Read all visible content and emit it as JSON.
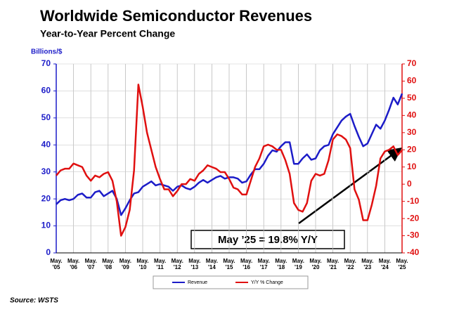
{
  "chart_data": {
    "type": "line",
    "title": "Worldwide Semiconductor Revenues",
    "subtitle": "Year-to-Year Percent Change",
    "ylabel": "Billions/$",
    "annotation": "May ’25 = 19.8% Y/Y",
    "source": "Source: WSTS",
    "grid": true,
    "legend": "bottom",
    "xlim": [
      "2005-05",
      "2025-05"
    ],
    "xticks": [
      {
        "value": "2005-05",
        "label": "May. '05"
      },
      {
        "value": "2006-05",
        "label": "May. '06"
      },
      {
        "value": "2007-05",
        "label": "May. '07"
      },
      {
        "value": "2008-05",
        "label": "May. '08"
      },
      {
        "value": "2009-05",
        "label": "May. '09"
      },
      {
        "value": "2010-05",
        "label": "May. '10"
      },
      {
        "value": "2011-05",
        "label": "May. '11"
      },
      {
        "value": "2012-05",
        "label": "May. '12"
      },
      {
        "value": "2013-05",
        "label": "May. '13"
      },
      {
        "value": "2014-05",
        "label": "May. '14"
      },
      {
        "value": "2015-05",
        "label": "May. '15"
      },
      {
        "value": "2016-05",
        "label": "May. '16"
      },
      {
        "value": "2017-05",
        "label": "May. '17"
      },
      {
        "value": "2018-05",
        "label": "May. '18"
      },
      {
        "value": "2019-05",
        "label": "May. '19"
      },
      {
        "value": "2020-05",
        "label": "May. '20"
      },
      {
        "value": "2021-05",
        "label": "May. '21"
      },
      {
        "value": "2022-05",
        "label": "May. '22"
      },
      {
        "value": "2023-05",
        "label": "May. '23"
      },
      {
        "value": "2024-05",
        "label": "May. '24"
      },
      {
        "value": "2025-05",
        "label": "May. '25"
      }
    ],
    "ylim": [
      0,
      70
    ],
    "yticks": [
      0,
      10,
      20,
      30,
      40,
      50,
      60,
      70
    ],
    "y2lim": [
      -40,
      70
    ],
    "y2ticks": [
      -40,
      -30,
      -20,
      -10,
      0,
      10,
      20,
      30,
      40,
      50,
      60,
      70
    ],
    "x": [
      "2005-05",
      "2005-08",
      "2005-11",
      "2006-02",
      "2006-05",
      "2006-08",
      "2006-11",
      "2007-02",
      "2007-05",
      "2007-08",
      "2007-11",
      "2008-02",
      "2008-05",
      "2008-08",
      "2008-11",
      "2009-02",
      "2009-05",
      "2009-08",
      "2009-11",
      "2010-02",
      "2010-05",
      "2010-08",
      "2010-11",
      "2011-02",
      "2011-05",
      "2011-08",
      "2011-11",
      "2012-02",
      "2012-05",
      "2012-08",
      "2012-11",
      "2013-02",
      "2013-05",
      "2013-08",
      "2013-11",
      "2014-02",
      "2014-05",
      "2014-08",
      "2014-11",
      "2015-02",
      "2015-05",
      "2015-08",
      "2015-11",
      "2016-02",
      "2016-05",
      "2016-08",
      "2016-11",
      "2017-02",
      "2017-05",
      "2017-08",
      "2017-11",
      "2018-02",
      "2018-05",
      "2018-08",
      "2018-11",
      "2019-02",
      "2019-05",
      "2019-08",
      "2019-11",
      "2020-02",
      "2020-05",
      "2020-08",
      "2020-11",
      "2021-02",
      "2021-05",
      "2021-08",
      "2021-11",
      "2022-02",
      "2022-05",
      "2022-08",
      "2022-11",
      "2023-02",
      "2023-05",
      "2023-08",
      "2023-11",
      "2024-02",
      "2024-05",
      "2024-08",
      "2024-11",
      "2025-02",
      "2025-05"
    ],
    "series": [
      {
        "name": "Revenue",
        "color": "#1c1cc8",
        "values": [
          18,
          19.5,
          20,
          19.5,
          20,
          21.5,
          22,
          20.5,
          20.5,
          22.5,
          23,
          21,
          22,
          23,
          20,
          14,
          16.5,
          19.5,
          22,
          22.5,
          24.5,
          25.5,
          26.5,
          25,
          25.5,
          25,
          24.5,
          23,
          24.5,
          25,
          24,
          23.5,
          24.5,
          26,
          27,
          26,
          27,
          28,
          28.5,
          27.5,
          28,
          28,
          27.5,
          26,
          26.5,
          29,
          31,
          31,
          33,
          36,
          38,
          37.5,
          39.5,
          41,
          41,
          33,
          33,
          35,
          36.5,
          34.5,
          35,
          38,
          39.5,
          40,
          44,
          46.5,
          49,
          50.5,
          51.5,
          47,
          43,
          39.5,
          40.5,
          44,
          47.5,
          46,
          49,
          53,
          57.5,
          55,
          59
        ]
      },
      {
        "name": "Y/Y % Change",
        "color": "#e01010",
        "axis": "y2",
        "values": [
          5,
          8,
          9,
          9,
          12,
          11,
          10,
          5,
          2,
          5,
          4,
          6,
          7,
          2,
          -10,
          -30,
          -25,
          -15,
          8,
          58,
          45,
          30,
          20,
          10,
          3,
          -3,
          -3,
          -7,
          -4,
          0,
          0,
          3,
          2,
          6,
          8,
          11,
          10,
          9,
          7,
          7,
          3,
          -2,
          -3,
          -6,
          -6,
          2,
          10,
          15,
          22,
          23,
          22,
          20,
          20,
          14,
          6,
          -11,
          -15,
          -16,
          -11,
          2,
          6,
          5,
          6,
          14,
          26,
          29,
          28,
          26,
          21,
          -3,
          -9,
          -21,
          -21,
          -12,
          -1,
          15,
          19,
          20,
          22,
          17,
          19.8
        ]
      }
    ]
  }
}
